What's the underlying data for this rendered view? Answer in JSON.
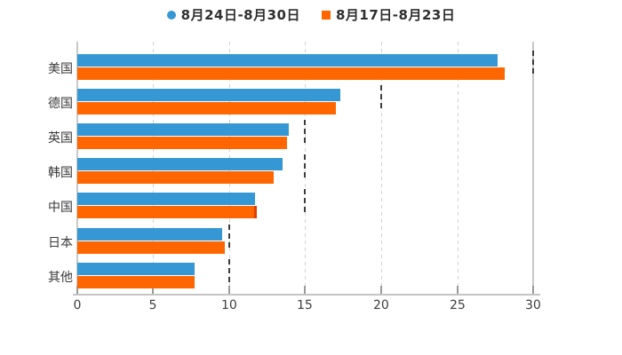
{
  "chart_data": {
    "type": "bar",
    "orientation": "horizontal",
    "title": "",
    "xlabel": "",
    "ylabel": "",
    "categories": [
      "美国",
      "德国",
      "英国",
      "韩国",
      "中国",
      "日本",
      "其他"
    ],
    "series": [
      {
        "name": "8月24日-8月30日",
        "color": "#3598d4",
        "marker": "circle",
        "values": [
          27.6,
          17.3,
          13.9,
          13.5,
          11.7,
          9.5,
          7.7
        ]
      },
      {
        "name": "8月17日-8月23日",
        "color": "#ff6600",
        "marker": "square",
        "values": [
          28.1,
          17.0,
          13.8,
          12.9,
          11.8,
          9.7,
          7.7
        ]
      }
    ],
    "x_ticks": [
      0,
      5,
      10,
      15,
      20,
      25,
      30
    ],
    "xlim": [
      0,
      30
    ],
    "grid": "vertical-dashed",
    "legend_position": "top-center",
    "ceil_marks": [
      30,
      20,
      15,
      15,
      15,
      10,
      10
    ],
    "bar_tip": {
      "category": "中国",
      "series_index": 1,
      "color": "#e23d00"
    },
    "colors": {
      "grid": "#d2d2d2",
      "spine": "#c8c8c8",
      "tick_label": "#3f3f3f",
      "category_label": "#3a3a3a",
      "ceil_mark": "#3d3d3d"
    }
  }
}
